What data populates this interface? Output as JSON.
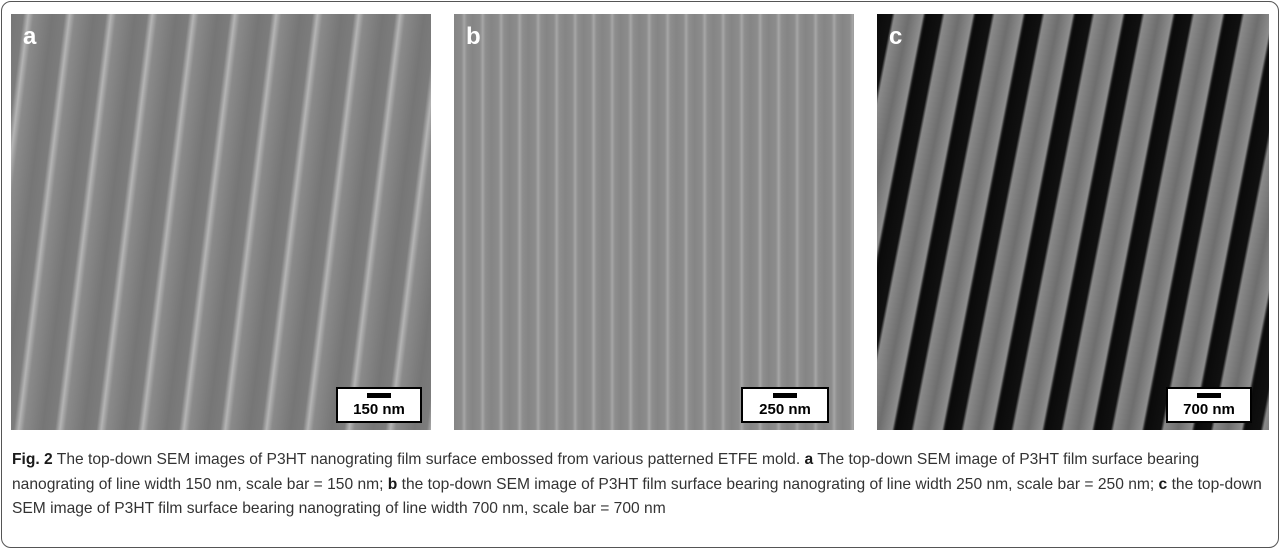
{
  "panels": [
    {
      "label": "a",
      "scale_bar": "150 nm"
    },
    {
      "label": "b",
      "scale_bar": "250 nm"
    },
    {
      "label": "c",
      "scale_bar": "700 nm"
    }
  ],
  "caption": {
    "figure_label": "Fig. 2",
    "title": "The top-down SEM images of P3HT nanograting film surface embossed from various patterned ETFE mold.",
    "parts": [
      {
        "label": "a",
        "text": "The top-down SEM image of P3HT film surface bearing nanograting of line width 150 nm, scale bar = 150 nm;"
      },
      {
        "label": "b",
        "text": "the top-down SEM image of P3HT film surface bearing nanograting of line width 250 nm, scale bar = 250 nm;"
      },
      {
        "label": "c",
        "text": "the top-down SEM image of P3HT film surface bearing nanograting of line width 700 nm, scale bar = 700 nm"
      }
    ]
  }
}
